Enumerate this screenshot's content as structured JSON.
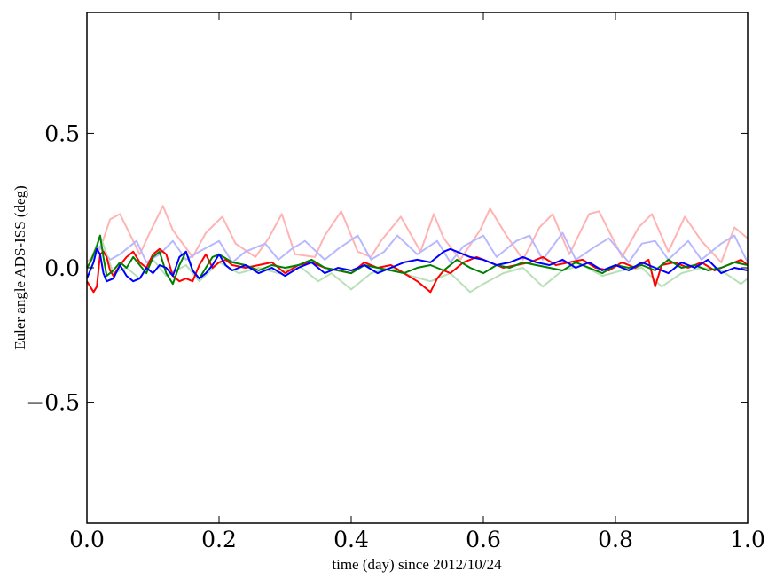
{
  "chart_data": {
    "type": "line",
    "title": "",
    "xlabel": "time (day) since 2012/10/24",
    "ylabel": "Euler angle ADS-ISS (deg)",
    "xlim": [
      0.0,
      1.0
    ],
    "ylim": [
      -0.95,
      0.95
    ],
    "x_ticks": [
      "0.0",
      "0.2",
      "0.4",
      "0.6",
      "0.8",
      "1.0"
    ],
    "y_ticks": [
      "0.5",
      "0.0",
      "−0.5"
    ],
    "grid": false,
    "legend": "none",
    "series": [
      {
        "color": "#ffb3b3",
        "x": [
          0.0,
          0.02,
          0.035,
          0.05,
          0.08,
          0.095,
          0.115,
          0.13,
          0.16,
          0.18,
          0.205,
          0.225,
          0.255,
          0.275,
          0.295,
          0.315,
          0.345,
          0.36,
          0.385,
          0.41,
          0.43,
          0.445,
          0.475,
          0.505,
          0.525,
          0.54,
          0.565,
          0.595,
          0.61,
          0.635,
          0.66,
          0.685,
          0.705,
          0.73,
          0.76,
          0.775,
          0.81,
          0.835,
          0.855,
          0.88,
          0.905,
          0.93,
          0.96,
          0.98,
          1.0
        ],
        "y": [
          0.02,
          0.07,
          0.18,
          0.2,
          0.05,
          0.13,
          0.23,
          0.14,
          0.04,
          0.13,
          0.19,
          0.09,
          0.04,
          0.11,
          0.2,
          0.05,
          0.04,
          0.12,
          0.21,
          0.06,
          0.04,
          0.1,
          0.19,
          0.06,
          0.2,
          0.11,
          0.03,
          0.14,
          0.22,
          0.12,
          0.03,
          0.15,
          0.2,
          0.05,
          0.2,
          0.21,
          0.04,
          0.15,
          0.2,
          0.06,
          0.19,
          0.1,
          0.02,
          0.15,
          0.11
        ]
      },
      {
        "color": "#b8b8ff",
        "x": [
          0.0,
          0.02,
          0.035,
          0.05,
          0.075,
          0.09,
          0.11,
          0.13,
          0.15,
          0.17,
          0.2,
          0.22,
          0.24,
          0.27,
          0.29,
          0.31,
          0.33,
          0.36,
          0.38,
          0.41,
          0.43,
          0.45,
          0.47,
          0.5,
          0.53,
          0.55,
          0.57,
          0.6,
          0.62,
          0.65,
          0.67,
          0.69,
          0.72,
          0.74,
          0.77,
          0.79,
          0.82,
          0.84,
          0.86,
          0.88,
          0.91,
          0.93,
          0.96,
          0.98,
          1.0
        ],
        "y": [
          0.0,
          0.08,
          0.03,
          0.05,
          0.1,
          0.02,
          0.05,
          0.1,
          0.03,
          0.06,
          0.1,
          0.02,
          0.06,
          0.09,
          0.03,
          0.07,
          0.1,
          0.03,
          0.07,
          0.12,
          0.03,
          0.06,
          0.12,
          0.05,
          0.1,
          0.02,
          0.08,
          0.12,
          0.04,
          0.1,
          0.12,
          0.03,
          0.13,
          0.03,
          0.08,
          0.11,
          0.02,
          0.09,
          0.1,
          0.03,
          0.1,
          0.03,
          0.09,
          0.12,
          0.02
        ]
      },
      {
        "color": "#b8e0b8",
        "x": [
          0.0,
          0.02,
          0.04,
          0.06,
          0.08,
          0.1,
          0.12,
          0.15,
          0.17,
          0.2,
          0.23,
          0.26,
          0.29,
          0.32,
          0.35,
          0.37,
          0.4,
          0.43,
          0.46,
          0.49,
          0.52,
          0.55,
          0.58,
          0.6,
          0.63,
          0.66,
          0.69,
          0.72,
          0.75,
          0.78,
          0.81,
          0.84,
          0.87,
          0.9,
          0.93,
          0.96,
          0.99,
          1.0
        ],
        "y": [
          -0.01,
          0.12,
          -0.02,
          0.0,
          -0.04,
          0.03,
          -0.03,
          0.01,
          -0.05,
          0.02,
          -0.02,
          0.0,
          -0.02,
          0.01,
          -0.05,
          -0.02,
          -0.08,
          -0.02,
          0.0,
          -0.03,
          -0.05,
          -0.02,
          -0.09,
          -0.06,
          -0.02,
          0.0,
          -0.07,
          -0.01,
          0.01,
          -0.03,
          -0.01,
          0.0,
          -0.07,
          -0.02,
          0.0,
          -0.01,
          -0.06,
          -0.04
        ]
      },
      {
        "color": "#ff0000",
        "x": [
          0.0,
          0.005,
          0.01,
          0.015,
          0.02,
          0.025,
          0.03,
          0.035,
          0.04,
          0.05,
          0.06,
          0.07,
          0.08,
          0.09,
          0.1,
          0.11,
          0.12,
          0.13,
          0.14,
          0.15,
          0.16,
          0.17,
          0.18,
          0.19,
          0.2,
          0.21,
          0.22,
          0.24,
          0.26,
          0.28,
          0.3,
          0.32,
          0.34,
          0.36,
          0.38,
          0.4,
          0.42,
          0.44,
          0.46,
          0.48,
          0.5,
          0.52,
          0.53,
          0.54,
          0.55,
          0.57,
          0.59,
          0.61,
          0.63,
          0.65,
          0.67,
          0.69,
          0.71,
          0.73,
          0.75,
          0.77,
          0.79,
          0.81,
          0.83,
          0.85,
          0.86,
          0.87,
          0.89,
          0.91,
          0.93,
          0.95,
          0.97,
          0.99,
          1.0
        ],
        "y": [
          -0.05,
          -0.07,
          -0.09,
          -0.07,
          0.05,
          0.06,
          0.04,
          -0.01,
          -0.03,
          0.01,
          0.04,
          0.06,
          0.02,
          0.0,
          0.05,
          0.07,
          0.05,
          -0.03,
          -0.05,
          -0.04,
          -0.05,
          0.01,
          0.05,
          0.0,
          0.02,
          0.03,
          0.01,
          0.0,
          0.01,
          0.02,
          -0.02,
          0.01,
          0.02,
          0.0,
          -0.01,
          -0.02,
          0.02,
          0.0,
          0.01,
          -0.02,
          -0.05,
          -0.09,
          -0.04,
          -0.01,
          -0.02,
          0.02,
          0.04,
          0.02,
          0.0,
          0.01,
          0.02,
          0.04,
          0.01,
          0.02,
          0.03,
          0.0,
          -0.01,
          0.02,
          0.0,
          0.03,
          -0.07,
          0.01,
          0.02,
          0.0,
          0.02,
          -0.01,
          0.01,
          0.03,
          0.01
        ]
      },
      {
        "color": "#008000",
        "x": [
          0.0,
          0.005,
          0.01,
          0.015,
          0.02,
          0.025,
          0.03,
          0.04,
          0.05,
          0.06,
          0.07,
          0.08,
          0.09,
          0.1,
          0.11,
          0.12,
          0.13,
          0.14,
          0.15,
          0.16,
          0.17,
          0.18,
          0.19,
          0.2,
          0.22,
          0.24,
          0.26,
          0.28,
          0.3,
          0.32,
          0.34,
          0.36,
          0.38,
          0.4,
          0.42,
          0.44,
          0.46,
          0.48,
          0.5,
          0.52,
          0.54,
          0.56,
          0.58,
          0.6,
          0.62,
          0.64,
          0.66,
          0.68,
          0.7,
          0.72,
          0.74,
          0.76,
          0.78,
          0.8,
          0.82,
          0.84,
          0.86,
          0.88,
          0.9,
          0.92,
          0.94,
          0.96,
          0.98,
          1.0
        ],
        "y": [
          0.0,
          0.02,
          0.05,
          0.08,
          0.12,
          0.04,
          -0.03,
          -0.01,
          0.02,
          0.0,
          0.04,
          0.01,
          -0.02,
          0.04,
          0.06,
          -0.02,
          -0.06,
          0.01,
          0.06,
          -0.01,
          -0.04,
          0.0,
          0.04,
          0.05,
          0.02,
          0.01,
          -0.01,
          0.01,
          0.0,
          0.01,
          0.03,
          0.0,
          -0.01,
          -0.02,
          0.01,
          0.0,
          -0.01,
          -0.02,
          0.0,
          0.01,
          -0.01,
          0.03,
          0.0,
          -0.02,
          0.01,
          0.0,
          0.02,
          0.01,
          0.0,
          -0.01,
          0.02,
          0.0,
          -0.02,
          0.01,
          0.0,
          0.01,
          -0.01,
          0.03,
          0.0,
          0.01,
          -0.01,
          0.0,
          0.02,
          0.01
        ]
      },
      {
        "color": "#0000ff",
        "x": [
          0.0,
          0.005,
          0.01,
          0.015,
          0.02,
          0.025,
          0.03,
          0.04,
          0.05,
          0.06,
          0.07,
          0.08,
          0.09,
          0.1,
          0.11,
          0.12,
          0.13,
          0.14,
          0.15,
          0.16,
          0.17,
          0.18,
          0.19,
          0.2,
          0.21,
          0.22,
          0.24,
          0.26,
          0.28,
          0.3,
          0.32,
          0.34,
          0.36,
          0.38,
          0.4,
          0.42,
          0.44,
          0.46,
          0.48,
          0.5,
          0.52,
          0.54,
          0.55,
          0.56,
          0.58,
          0.6,
          0.62,
          0.64,
          0.66,
          0.68,
          0.7,
          0.72,
          0.74,
          0.76,
          0.78,
          0.8,
          0.82,
          0.84,
          0.86,
          0.88,
          0.9,
          0.92,
          0.94,
          0.96,
          0.98,
          1.0
        ],
        "y": [
          -0.04,
          -0.01,
          0.02,
          0.07,
          0.05,
          -0.02,
          -0.05,
          -0.04,
          0.01,
          -0.03,
          -0.05,
          -0.04,
          0.0,
          -0.02,
          0.01,
          0.0,
          -0.03,
          0.04,
          0.06,
          -0.01,
          -0.04,
          -0.02,
          0.01,
          0.05,
          0.01,
          -0.01,
          0.01,
          -0.02,
          0.0,
          -0.03,
          0.0,
          0.02,
          -0.02,
          0.0,
          -0.01,
          0.01,
          -0.02,
          0.0,
          0.02,
          0.03,
          0.02,
          0.06,
          0.07,
          0.06,
          0.04,
          0.03,
          0.01,
          0.02,
          0.04,
          0.02,
          0.01,
          0.03,
          0.0,
          0.02,
          -0.01,
          0.01,
          -0.01,
          0.02,
          0.0,
          -0.02,
          0.02,
          0.0,
          0.03,
          -0.02,
          0.0,
          -0.01
        ]
      }
    ]
  }
}
